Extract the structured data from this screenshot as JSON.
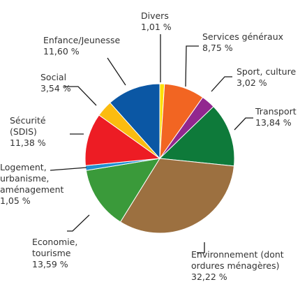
{
  "chart_data": {
    "type": "pie",
    "title": "",
    "slices": [
      {
        "label_lines": [
          "Divers",
          "1,01 %"
        ],
        "value": 1.01,
        "color": "#ffe000"
      },
      {
        "label_lines": [
          "Services généraux",
          "8,75 %"
        ],
        "value": 8.75,
        "color": "#f26522"
      },
      {
        "label_lines": [
          "Sport, culture",
          "3,02 %"
        ],
        "value": 3.02,
        "color": "#92278f"
      },
      {
        "label_lines": [
          "Transport",
          "13,84 %"
        ],
        "value": 13.84,
        "color": "#0e7a3a"
      },
      {
        "label_lines": [
          "Environnement (dont",
          "ordures ménagères)",
          "32,22 %"
        ],
        "value": 32.22,
        "color": "#9c7040"
      },
      {
        "label_lines": [
          "Economie,",
          "tourisme",
          "13,59 %"
        ],
        "value": 13.59,
        "color": "#3a9a3a"
      },
      {
        "label_lines": [
          "Logement,",
          "urbanisme,",
          "aménagement",
          "1,05 %"
        ],
        "value": 1.05,
        "color": "#1f8fd0"
      },
      {
        "label_lines": [
          "Sécurité",
          "(SDIS)",
          "11,38 %"
        ],
        "value": 11.38,
        "color": "#ed1c24"
      },
      {
        "label_lines": [
          "Social",
          "3,54 %"
        ],
        "value": 3.54,
        "color": "#fbbc10"
      },
      {
        "label_lines": [
          "Enfance/Jeunesse",
          "11,60 %"
        ],
        "value": 11.6,
        "color": "#0b57a4"
      }
    ]
  }
}
